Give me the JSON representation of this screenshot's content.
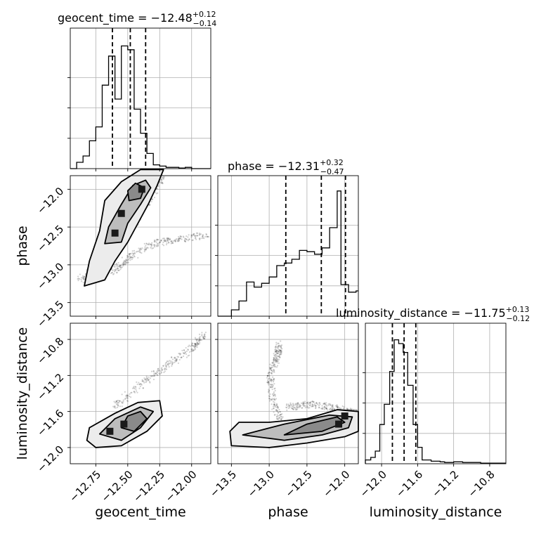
{
  "chart_data": {
    "type": "corner",
    "grid": true,
    "parameters": [
      "geocent_time",
      "phase",
      "luminosity_distance"
    ],
    "titles": {
      "geocent_time": {
        "prefix": "geocent_time = ",
        "median": "−12.48",
        "plus": "+0.12",
        "minus": "−0.14"
      },
      "phase": {
        "prefix": "phase = ",
        "median": "−12.31",
        "plus": "+0.32",
        "minus": "−0.47"
      },
      "luminosity_distance": {
        "prefix": "luminosity_distance = ",
        "median": "−11.75",
        "plus": "+0.13",
        "minus": "−0.12"
      }
    },
    "axes": {
      "geocent_time": {
        "range": [
          -12.95,
          -11.85
        ],
        "ticks": [
          -12.75,
          -12.5,
          -12.25,
          -12.0
        ],
        "tick_labels": [
          "−12.75",
          "−12.50",
          "−12.25",
          "−12.00"
        ]
      },
      "phase": {
        "range": [
          -13.68,
          -11.82
        ],
        "ticks": [
          -13.5,
          -13.0,
          -12.5,
          -12.0
        ],
        "tick_labels": [
          "−13.5",
          "−13.0",
          "−12.5",
          "−12.0"
        ]
      },
      "luminosity_distance": {
        "range": [
          -12.18,
          -10.62
        ],
        "ticks": [
          -12.0,
          -11.6,
          -11.2,
          -10.8
        ],
        "tick_labels": [
          "−12.0",
          "−11.6",
          "−11.2",
          "−10.8"
        ]
      }
    },
    "histograms": [
      {
        "param": "geocent_time",
        "edges": [
          -12.95,
          -12.9,
          -12.85,
          -12.8,
          -12.75,
          -12.7,
          -12.65,
          -12.6,
          -12.55,
          -12.5,
          -12.45,
          -12.4,
          -12.35,
          -12.3,
          -12.25,
          -12.2,
          -12.15,
          -12.1,
          -12.05,
          -12.0,
          -11.95,
          -11.9,
          -11.85
        ],
        "heights": [
          0.0,
          0.05,
          0.1,
          0.22,
          0.33,
          0.66,
          0.89,
          0.55,
          0.97,
          0.94,
          0.47,
          0.28,
          0.12,
          0.03,
          0.02,
          0.01,
          0.01,
          0.005,
          0.01,
          0.0,
          0.0,
          0.0
        ],
        "quantiles": [
          -12.62,
          -12.48,
          -12.36
        ]
      },
      {
        "param": "phase",
        "edges": [
          -13.68,
          -13.6,
          -13.5,
          -13.4,
          -13.3,
          -13.2,
          -13.1,
          -13.0,
          -12.9,
          -12.8,
          -12.7,
          -12.6,
          -12.5,
          -12.4,
          -12.3,
          -12.2,
          -12.1,
          -12.05,
          -11.95,
          -11.85,
          -11.82
        ],
        "heights": [
          0.0,
          0.0,
          0.05,
          0.12,
          0.27,
          0.23,
          0.26,
          0.31,
          0.4,
          0.42,
          0.45,
          0.52,
          0.51,
          0.49,
          0.54,
          0.7,
          0.99,
          0.25,
          0.19,
          0.2
        ],
        "quantiles": [
          -12.78,
          -12.31,
          -11.99
        ]
      },
      {
        "param": "luminosity_distance",
        "edges": [
          -12.18,
          -12.12,
          -12.07,
          -12.02,
          -11.97,
          -11.91,
          -11.86,
          -11.81,
          -11.76,
          -11.71,
          -11.65,
          -11.6,
          -11.55,
          -11.5,
          -11.45,
          -11.4,
          -11.35,
          -11.3,
          -11.2,
          -11.1,
          -11.0,
          -10.9,
          -10.8,
          -10.7,
          -10.62
        ],
        "heights": [
          0.03,
          0.05,
          0.1,
          0.31,
          0.47,
          0.73,
          0.98,
          0.95,
          0.88,
          0.62,
          0.31,
          0.13,
          0.03,
          0.03,
          0.02,
          0.02,
          0.015,
          0.01,
          0.015,
          0.01,
          0.01,
          0.005,
          0.005,
          0.005
        ],
        "quantiles": [
          -11.88,
          -11.75,
          -11.62
        ]
      }
    ],
    "joint_plots": [
      {
        "x": "geocent_time",
        "y": "phase",
        "contours": [
          [
            [
              -12.84,
              -13.28
            ],
            [
              -12.68,
              -13.2
            ],
            [
              -12.6,
              -12.95
            ],
            [
              -12.5,
              -12.7
            ],
            [
              -12.42,
              -12.45
            ],
            [
              -12.34,
              -12.2
            ],
            [
              -12.27,
              -11.95
            ],
            [
              -12.22,
              -11.74
            ],
            [
              -12.4,
              -11.74
            ],
            [
              -12.55,
              -11.9
            ],
            [
              -12.68,
              -12.15
            ],
            [
              -12.72,
              -12.55
            ],
            [
              -12.8,
              -12.95
            ],
            [
              -12.84,
              -13.28
            ]
          ],
          [
            [
              -12.68,
              -12.72
            ],
            [
              -12.55,
              -12.7
            ],
            [
              -12.5,
              -12.45
            ],
            [
              -12.4,
              -12.2
            ],
            [
              -12.32,
              -11.98
            ],
            [
              -12.36,
              -11.88
            ],
            [
              -12.46,
              -11.95
            ],
            [
              -12.55,
              -12.2
            ],
            [
              -12.65,
              -12.5
            ],
            [
              -12.68,
              -12.72
            ]
          ],
          [
            [
              -12.49,
              -12.15
            ],
            [
              -12.4,
              -12.12
            ],
            [
              -12.37,
              -11.98
            ],
            [
              -12.44,
              -11.92
            ],
            [
              -12.5,
              -12.02
            ],
            [
              -12.49,
              -12.15
            ]
          ]
        ],
        "density_peaks": [
          [
            -12.39,
            -12.0
          ],
          [
            -12.6,
            -12.58
          ],
          [
            -12.55,
            -12.32
          ]
        ],
        "sample_ridges": [
          [
            [
              -12.88,
              -13.2
            ],
            [
              -12.7,
              -13.0
            ],
            [
              -12.5,
              -12.6
            ],
            [
              -12.3,
              -12.05
            ],
            [
              -12.2,
              -11.72
            ]
          ],
          [
            [
              -12.62,
              -13.1
            ],
            [
              -12.5,
              -12.92
            ],
            [
              -12.3,
              -12.72
            ],
            [
              -12.1,
              -12.66
            ],
            [
              -11.87,
              -12.6
            ]
          ]
        ]
      },
      {
        "x": "geocent_time",
        "y": "luminosity_distance",
        "contours": [
          [
            [
              -12.82,
              -11.92
            ],
            [
              -12.75,
              -12.0
            ],
            [
              -12.55,
              -11.98
            ],
            [
              -12.35,
              -11.82
            ],
            [
              -12.23,
              -11.65
            ],
            [
              -12.25,
              -11.48
            ],
            [
              -12.42,
              -11.5
            ],
            [
              -12.6,
              -11.62
            ],
            [
              -12.8,
              -11.78
            ],
            [
              -12.82,
              -11.92
            ]
          ],
          [
            [
              -12.72,
              -11.85
            ],
            [
              -12.55,
              -11.92
            ],
            [
              -12.4,
              -11.78
            ],
            [
              -12.3,
              -11.6
            ],
            [
              -12.4,
              -11.55
            ],
            [
              -12.6,
              -11.68
            ],
            [
              -12.72,
              -11.85
            ]
          ],
          [
            [
              -12.55,
              -11.78
            ],
            [
              -12.45,
              -11.82
            ],
            [
              -12.35,
              -11.68
            ],
            [
              -12.4,
              -11.6
            ],
            [
              -12.5,
              -11.65
            ],
            [
              -12.55,
              -11.78
            ]
          ]
        ],
        "density_peaks": [
          [
            -12.64,
            -11.82
          ],
          [
            -12.53,
            -11.74
          ]
        ],
        "sample_ridges": [
          [
            [
              -12.6,
              -11.55
            ],
            [
              -12.4,
              -11.3
            ],
            [
              -12.2,
              -11.1
            ],
            [
              -12.0,
              -10.9
            ],
            [
              -11.9,
              -10.75
            ]
          ]
        ]
      },
      {
        "x": "phase",
        "y": "luminosity_distance",
        "contours": [
          [
            [
              -13.52,
              -11.82
            ],
            [
              -13.5,
              -11.98
            ],
            [
              -13.0,
              -12.0
            ],
            [
              -12.5,
              -11.95
            ],
            [
              -12.0,
              -11.88
            ],
            [
              -11.82,
              -11.82
            ],
            [
              -11.82,
              -11.6
            ],
            [
              -12.1,
              -11.58
            ],
            [
              -12.5,
              -11.68
            ],
            [
              -13.0,
              -11.72
            ],
            [
              -13.4,
              -11.72
            ],
            [
              -13.52,
              -11.82
            ]
          ],
          [
            [
              -13.35,
              -11.86
            ],
            [
              -12.8,
              -11.92
            ],
            [
              -12.3,
              -11.86
            ],
            [
              -11.95,
              -11.78
            ],
            [
              -11.9,
              -11.66
            ],
            [
              -12.2,
              -11.64
            ],
            [
              -12.8,
              -11.74
            ],
            [
              -13.35,
              -11.86
            ]
          ],
          [
            [
              -12.8,
              -11.86
            ],
            [
              -12.3,
              -11.82
            ],
            [
              -12.0,
              -11.72
            ],
            [
              -12.1,
              -11.66
            ],
            [
              -12.5,
              -11.74
            ],
            [
              -12.8,
              -11.86
            ]
          ]
        ],
        "density_peaks": [
          [
            -12.0,
            -11.65
          ],
          [
            -12.08,
            -11.74
          ]
        ],
        "sample_ridges": [
          [
            [
              -12.8,
              -11.78
            ],
            [
              -12.95,
              -11.5
            ],
            [
              -12.99,
              -11.2
            ],
            [
              -12.9,
              -11.0
            ],
            [
              -12.86,
              -10.85
            ]
          ],
          [
            [
              -12.75,
              -11.55
            ],
            [
              -12.5,
              -11.52
            ],
            [
              -12.2,
              -11.55
            ],
            [
              -11.95,
              -11.6
            ],
            [
              -11.82,
              -11.62
            ]
          ]
        ]
      }
    ]
  }
}
